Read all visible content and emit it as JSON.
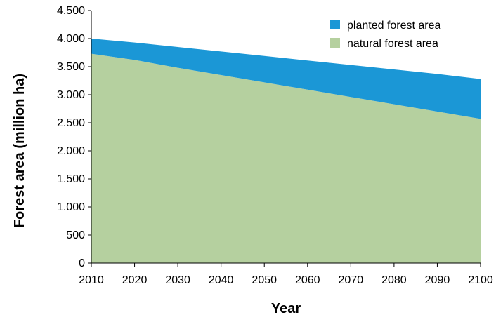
{
  "chart_data": {
    "type": "area",
    "stacked": true,
    "title": "",
    "xlabel": "Year",
    "ylabel": "Forest area (million ha)",
    "x": [
      2010,
      2020,
      2030,
      2040,
      2050,
      2060,
      2070,
      2080,
      2090,
      2100
    ],
    "x_tick_labels": [
      "2010",
      "2020",
      "2030",
      "2040",
      "2050",
      "2060",
      "2070",
      "2080",
      "2090",
      "2100"
    ],
    "xlim": [
      2010,
      2100
    ],
    "ylim": [
      0,
      4500
    ],
    "y_ticks": [
      0,
      500,
      1000,
      1500,
      2000,
      2500,
      3000,
      3500,
      4000,
      4500
    ],
    "y_tick_labels": [
      "0",
      "500",
      "1.000",
      "1.500",
      "2.000",
      "2.500",
      "3.000",
      "3.500",
      "4.000",
      "4.500"
    ],
    "grid": false,
    "legend_position": "top-right",
    "series": [
      {
        "name": "natural forest area",
        "color": "#b5d09f",
        "values": [
          3730,
          3620,
          3480,
          3350,
          3220,
          3090,
          2960,
          2830,
          2700,
          2570
        ]
      },
      {
        "name": "planted forest area",
        "color": "#1b97d6",
        "values": [
          270,
          310,
          370,
          420,
          470,
          520,
          570,
          620,
          670,
          710
        ]
      }
    ]
  }
}
